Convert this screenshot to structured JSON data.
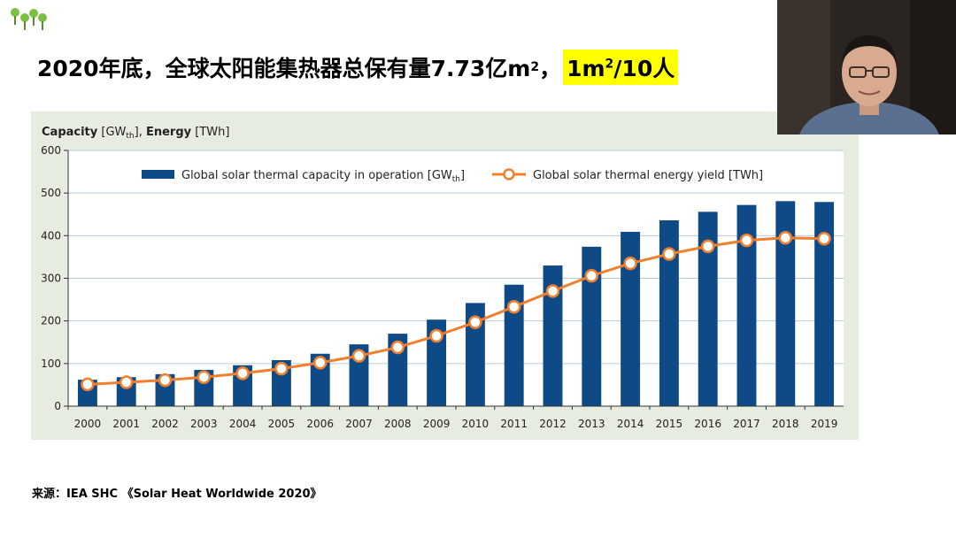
{
  "slide": {
    "headline_pre": "2020年底，全球太阳能集热器总保有量7.73亿m",
    "headline_sup1": "2",
    "headline_mid": "，",
    "headline_hl_pre": "1m",
    "headline_hl_sup": "2",
    "headline_hl_post": "/10人",
    "source": "来源：IEA SHC 《Solar Heat Worldwide 2020》"
  },
  "colors": {
    "bar": "#0d4a86",
    "line": "#f07f2e",
    "panel_bg": "#e6ece0",
    "plot_bg": "#ffffff",
    "grid": "#b9c9dc",
    "highlight": "#ffff00"
  },
  "chart_data": {
    "type": "bar",
    "title": "",
    "ylabel_parts": [
      "Capacity",
      " [GW",
      "th",
      "], ",
      "Energy",
      " [TWh]"
    ],
    "xlabel": "",
    "ylim": [
      0,
      600
    ],
    "yticks": [
      0,
      100,
      200,
      300,
      400,
      500,
      600
    ],
    "grid": true,
    "legend_position": "top",
    "categories": [
      "2000",
      "2001",
      "2002",
      "2003",
      "2004",
      "2005",
      "2006",
      "2007",
      "2008",
      "2009",
      "2010",
      "2011",
      "2012",
      "2013",
      "2014",
      "2015",
      "2016",
      "2017",
      "2018",
      "2019"
    ],
    "series": [
      {
        "name": "Global solar thermal capacity in operation [GWth]",
        "name_parts": [
          "Global solar thermal capacity in operation [GW",
          "th",
          "]"
        ],
        "type": "bar",
        "values": [
          62,
          68,
          75,
          85,
          96,
          108,
          123,
          145,
          170,
          203,
          242,
          285,
          330,
          374,
          409,
          436,
          456,
          472,
          481,
          479
        ]
      },
      {
        "name": "Global solar thermal energy yield [TWh]",
        "name_parts": [
          "Global solar thermal energy yield [TWh]"
        ],
        "type": "line",
        "values": [
          51,
          56,
          61,
          68,
          77,
          88,
          102,
          118,
          138,
          165,
          197,
          233,
          270,
          306,
          335,
          357,
          375,
          389,
          395,
          393
        ]
      }
    ]
  }
}
